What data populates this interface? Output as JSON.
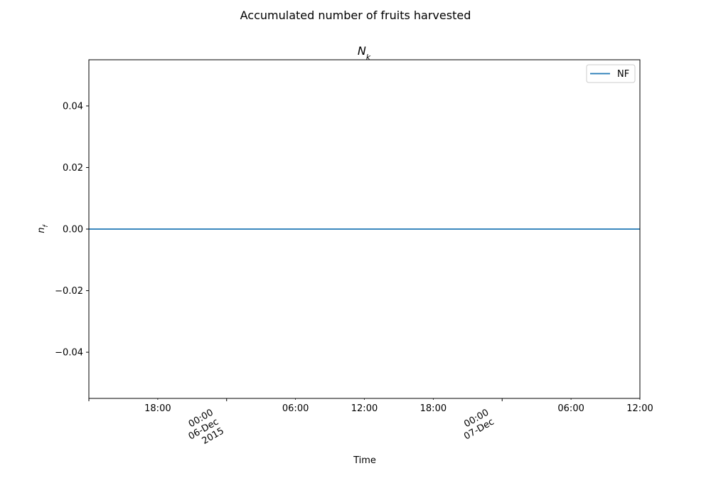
{
  "figure": {
    "suptitle": "Accumulated  number of fruits harvested"
  },
  "chart_data": {
    "type": "line",
    "title_main": "N",
    "title_sub": "k",
    "xlabel": "Time",
    "ylabel_main": "n",
    "ylabel_sub": "f",
    "x_range": [
      "2015-12-05T12:00",
      "2015-12-07T12:00"
    ],
    "ylim": [
      -0.055,
      0.055
    ],
    "x_ticks_major": [
      {
        "t": "2015-12-05T12:00",
        "lines": []
      },
      {
        "t": "2015-12-06T00:00",
        "lines": [
          "00:00",
          "06-Dec",
          "2015"
        ]
      },
      {
        "t": "2015-12-07T00:00",
        "lines": [
          "00:00",
          "07-Dec"
        ]
      }
    ],
    "x_ticks_minor": [
      {
        "t": "2015-12-05T18:00",
        "label": "18:00"
      },
      {
        "t": "2015-12-06T06:00",
        "label": "06:00"
      },
      {
        "t": "2015-12-06T12:00",
        "label": "12:00"
      },
      {
        "t": "2015-12-06T18:00",
        "label": "18:00"
      },
      {
        "t": "2015-12-07T06:00",
        "label": "06:00"
      },
      {
        "t": "2015-12-07T12:00",
        "label": "12:00"
      }
    ],
    "y_ticks": [
      {
        "value": -0.04,
        "label": "−0.04"
      },
      {
        "value": -0.02,
        "label": "−0.02"
      },
      {
        "value": 0.0,
        "label": "0.00"
      },
      {
        "value": 0.02,
        "label": "0.02"
      },
      {
        "value": 0.04,
        "label": "0.04"
      }
    ],
    "series": [
      {
        "name": "NF",
        "color": "#1f77b4",
        "points": [
          {
            "x": "2015-12-05T12:00",
            "y": 0
          },
          {
            "x": "2015-12-07T12:00",
            "y": 0
          }
        ]
      }
    ],
    "legend": {
      "position": "top-right"
    },
    "grid": false
  }
}
